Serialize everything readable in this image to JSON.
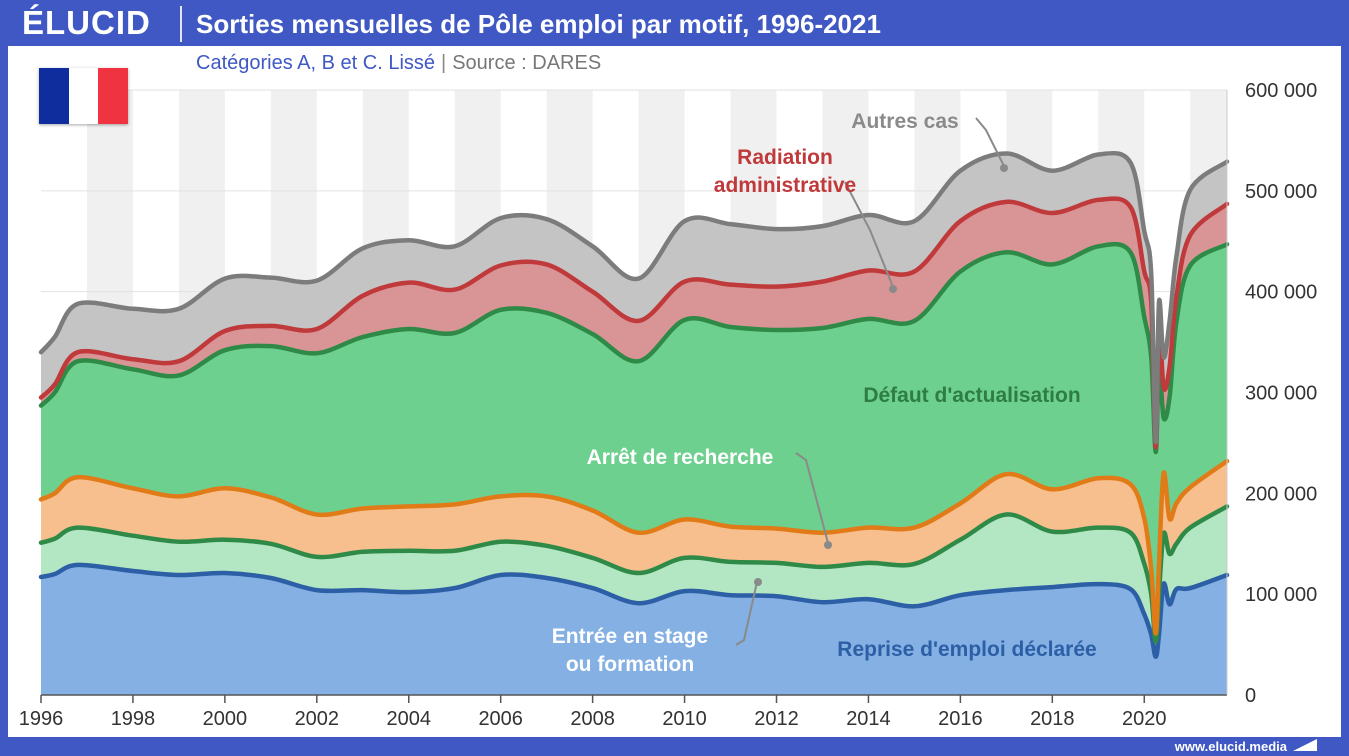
{
  "header": {
    "logo": "ÉLUCID",
    "title": "Sorties mensuelles de Pôle emploi par motif, 1996-2021",
    "subtitle": "Catégories A, B et C. Lissé",
    "separator": "|",
    "source": "Source : DARES",
    "url": "www.elucid.media"
  },
  "flag": {
    "colors": [
      "#0f2d9c",
      "#ffffff",
      "#ef3340"
    ]
  },
  "chart_data": {
    "type": "area",
    "stacked": true,
    "xlim": [
      1996,
      2021.8
    ],
    "ylim": [
      0,
      600000
    ],
    "x_ticks": [
      "1996",
      "1998",
      "2000",
      "2002",
      "2004",
      "2006",
      "2008",
      "2010",
      "2012",
      "2014",
      "2016",
      "2018",
      "2020"
    ],
    "y_ticks": [
      "0",
      "100 000",
      "200 000",
      "300 000",
      "400 000",
      "500 000",
      "600 000"
    ],
    "y_axis_side": "right",
    "grid": true,
    "x": [
      1996,
      1996.3,
      1996.8,
      1998,
      1999,
      2000,
      2001,
      2002,
      2003,
      2004,
      2005,
      2006,
      2007,
      2008,
      2009,
      2010,
      2011,
      2012,
      2013,
      2014,
      2015,
      2016,
      2017,
      2018,
      2019,
      2019.7,
      2020.0,
      2020.15,
      2020.25,
      2020.32,
      2020.42,
      2020.55,
      2020.7,
      2021,
      2021.8
    ],
    "series": [
      {
        "name": "Reprise d'emploi déclarée",
        "color": "#2d5fa6",
        "fill": "#84b0e3",
        "values": [
          117000,
          120000,
          129000,
          123000,
          119000,
          121000,
          116000,
          104000,
          104000,
          102000,
          106000,
          119000,
          116000,
          106000,
          91000,
          103000,
          99000,
          98000,
          92000,
          95000,
          88000,
          99000,
          104000,
          107000,
          110000,
          105000,
          80000,
          60000,
          38000,
          60000,
          110000,
          90000,
          105000,
          106000,
          119000
        ]
      },
      {
        "name": "Entrée en stage ou formation",
        "color": "#2f8a48",
        "fill": "#b3e6c2",
        "values": [
          34000,
          35000,
          37000,
          35000,
          33000,
          33000,
          34000,
          33000,
          38000,
          41000,
          37000,
          33000,
          32000,
          30000,
          30000,
          33000,
          33000,
          33000,
          35000,
          36000,
          42000,
          55000,
          75000,
          55000,
          56000,
          56000,
          50000,
          40000,
          15000,
          40000,
          50000,
          50000,
          45000,
          60000,
          68000
        ]
      },
      {
        "name": "Arrêt de recherche",
        "color": "#e07b18",
        "fill": "#f7bf8e",
        "values": [
          43000,
          45000,
          50000,
          47000,
          45000,
          51000,
          46000,
          42000,
          43000,
          44000,
          46000,
          45000,
          49000,
          47000,
          40000,
          38000,
          35000,
          34000,
          34000,
          35000,
          36000,
          36000,
          40000,
          42000,
          49000,
          48000,
          45000,
          25000,
          8000,
          30000,
          60000,
          35000,
          40000,
          40000,
          45000
        ]
      },
      {
        "name": "Défaut d'actualisation",
        "color": "#2f8a48",
        "fill": "#6dd08e",
        "values": [
          93000,
          100000,
          115000,
          118000,
          120000,
          137000,
          150000,
          160000,
          170000,
          176000,
          170000,
          185000,
          182000,
          175000,
          170000,
          198000,
          198000,
          197000,
          203000,
          207000,
          205000,
          230000,
          220000,
          223000,
          230000,
          230000,
          200000,
          210000,
          180000,
          200000,
          55000,
          120000,
          180000,
          220000,
          215000
        ]
      },
      {
        "name": "Radiation administrative",
        "color": "#c0393b",
        "fill": "#d99596",
        "values": [
          8000,
          8000,
          9000,
          10000,
          14000,
          19000,
          20000,
          24000,
          41000,
          46000,
          43000,
          44000,
          48000,
          42000,
          40000,
          38000,
          42000,
          43000,
          46000,
          48000,
          49000,
          50000,
          50000,
          51000,
          46000,
          45000,
          45000,
          55000,
          5000,
          40000,
          30000,
          30000,
          25000,
          30000,
          40000
        ]
      },
      {
        "name": "Autres cas",
        "color": "#7c7c7c",
        "fill": "#c4c4c4",
        "values": [
          45000,
          47000,
          48000,
          50000,
          52000,
          52000,
          48000,
          48000,
          47000,
          42000,
          43000,
          47000,
          45000,
          45000,
          42000,
          60000,
          60000,
          57000,
          55000,
          55000,
          50000,
          50000,
          48000,
          42000,
          45000,
          44000,
          40000,
          28000,
          5000,
          20000,
          30000,
          45000,
          40000,
          45000,
          42000
        ]
      }
    ],
    "annotations": [
      {
        "series": 5,
        "lines": [
          "Autres cas"
        ]
      },
      {
        "series": 4,
        "lines": [
          "Radiation",
          "administrative"
        ]
      },
      {
        "series": 3,
        "lines": [
          "Défaut d'actualisation"
        ]
      },
      {
        "series": 2,
        "lines": [
          "Arrêt de recherche"
        ]
      },
      {
        "series": 1,
        "lines": [
          "Entrée en stage",
          "ou formation"
        ]
      },
      {
        "series": 0,
        "lines": [
          "Reprise d'emploi déclarée"
        ]
      }
    ]
  }
}
